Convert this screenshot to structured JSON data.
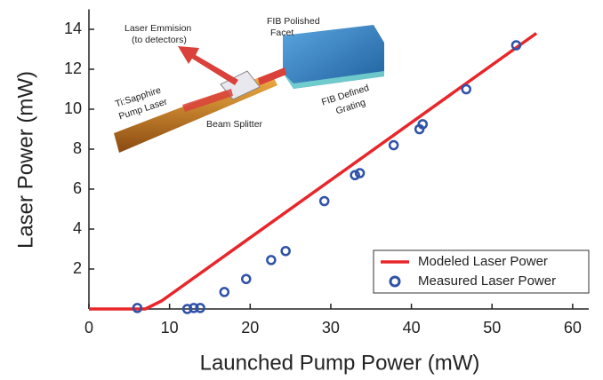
{
  "chart_data": {
    "type": "line",
    "x_label": "Launched Pump Power (mW)",
    "y_label": "Laser Power (mW)",
    "xlim": [
      0,
      62
    ],
    "ylim": [
      0,
      15
    ],
    "xticks": [
      0,
      10,
      20,
      30,
      40,
      50,
      60
    ],
    "yticks": [
      2,
      4,
      6,
      8,
      10,
      12,
      14
    ],
    "legend": "lower right",
    "annotations": [
      "Laser Emmision",
      "(to detectors)",
      "FIB Polished",
      "Facet",
      "Ti:Sapphire",
      "Pump Laser",
      "Beam Splitter",
      "FIB Defined",
      "Grating"
    ],
    "series": [
      {
        "name": "Modeled Laser Power",
        "type": "line",
        "color": "#e8262a",
        "x": [
          0,
          7,
          9,
          55.5
        ],
        "values": [
          0,
          0,
          0.4,
          13.8
        ]
      },
      {
        "name": "Measured Laser Power",
        "type": "scatter",
        "color": "#2f52a8",
        "x": [
          6,
          12.2,
          13,
          13.8,
          16.8,
          19.5,
          22.6,
          24.4,
          29.2,
          33,
          33.6,
          37.8,
          41,
          41.4,
          46.8,
          53
        ],
        "values": [
          0.05,
          0,
          0.05,
          0.05,
          0.85,
          1.5,
          2.45,
          2.9,
          5.4,
          6.7,
          6.8,
          8.2,
          9,
          9.25,
          11,
          13.2
        ]
      }
    ]
  }
}
